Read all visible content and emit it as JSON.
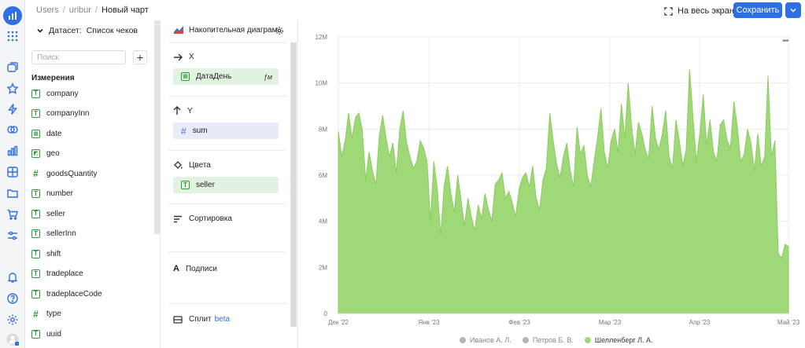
{
  "breadcrumb": {
    "items": [
      "Users",
      "uribur"
    ],
    "current": "Новый чарт"
  },
  "toolbar": {
    "fullscreen_label": "На весь экран",
    "save_label": "Сохранить"
  },
  "dataset": {
    "label": "Датасет:",
    "name": "Список чеков",
    "search_placeholder": "Поиск",
    "dimensions_title": "Измерения",
    "fields": [
      {
        "name": "company",
        "kind": "text"
      },
      {
        "name": "companyInn",
        "kind": "text"
      },
      {
        "name": "date",
        "kind": "date"
      },
      {
        "name": "geo",
        "kind": "geo"
      },
      {
        "name": "goodsQuantity",
        "kind": "number"
      },
      {
        "name": "number",
        "kind": "text"
      },
      {
        "name": "seller",
        "kind": "text"
      },
      {
        "name": "sellerInn",
        "kind": "text"
      },
      {
        "name": "shift",
        "kind": "text"
      },
      {
        "name": "tradeplace",
        "kind": "text"
      },
      {
        "name": "tradeplaceCode",
        "kind": "text"
      },
      {
        "name": "type",
        "kind": "number"
      },
      {
        "name": "uuid",
        "kind": "text"
      }
    ]
  },
  "sections": {
    "chart_type": "Накопительная диаграм...",
    "x_label": "X",
    "x_field": "ДатаДень",
    "x_field_extra": "ƒм",
    "y_label": "Y",
    "y_field": "sum",
    "colors_label": "Цвета",
    "colors_field": "seller",
    "sort_label": "Сортировка",
    "labels_label": "Подписи",
    "split_label": "Сплит",
    "split_badge": "beta"
  },
  "colors": {
    "accent": "#2f6fe6",
    "series": "#9fd876",
    "series_stroke": "#8dcc62",
    "field_icon": "#2e9a3c"
  },
  "chart_data": {
    "type": "area",
    "title": "",
    "xlabel": "",
    "ylabel": "",
    "ylim": [
      0,
      12000000
    ],
    "y_ticks": [
      "0",
      "2M",
      "4M",
      "6M",
      "8M",
      "10M",
      "12M"
    ],
    "x_ticks": [
      "Дек '22",
      "Янв '23",
      "Фев '23",
      "Мар '23",
      "Апр '23",
      "Май '23"
    ],
    "series": [
      {
        "name": "Иванов А. Л.",
        "values": [],
        "enabled": false,
        "color": "#b5b5b5"
      },
      {
        "name": "Петров Б. В.",
        "values": [],
        "enabled": false,
        "color": "#b5b5b5"
      },
      {
        "name": "Шелленберг Л. А.",
        "enabled": true,
        "color": "#9fd876",
        "values": [
          7.9,
          6.8,
          7.5,
          8.7,
          7.6,
          8.5,
          8.7,
          8.0,
          5.8,
          7.0,
          6.2,
          5.6,
          7.7,
          8.6,
          7.6,
          6.8,
          7.4,
          6.1,
          8.0,
          8.8,
          7.4,
          6.8,
          6.3,
          6.6,
          7.5,
          7.2,
          6.6,
          4.0,
          6.6,
          5.4,
          3.4,
          5.5,
          6.4,
          5.2,
          4.4,
          6.0,
          4.9,
          3.8,
          5.0,
          4.2,
          3.6,
          4.7,
          4.1,
          5.2,
          4.5,
          4.0,
          5.6,
          5.8,
          6.1,
          5.0,
          5.3,
          4.8,
          4.2,
          5.4,
          5.9,
          6.1,
          5.5,
          6.4,
          5.0,
          4.5,
          5.8,
          6.3,
          8.7,
          7.5,
          6.5,
          5.9,
          6.8,
          7.4,
          6.2,
          5.5,
          8.1,
          6.9,
          7.3,
          6.0,
          5.5,
          6.6,
          7.6,
          8.9,
          7.0,
          6.3,
          7.5,
          8.0,
          7.0,
          9.1,
          7.6,
          10.0,
          8.1,
          6.9,
          8.3,
          7.8,
          7.1,
          6.7,
          9.0,
          7.6,
          7.1,
          7.8,
          8.8,
          6.8,
          6.3,
          8.4,
          7.5,
          6.4,
          7.1,
          10.6,
          8.5,
          6.6,
          7.8,
          9.5,
          7.3,
          8.4,
          7.0,
          6.6,
          8.2,
          8.4,
          7.5,
          7.2,
          9.2,
          8.1,
          6.6,
          6.9,
          8.0,
          7.4,
          6.2,
          7.8,
          6.4,
          6.8,
          10.3,
          6.8,
          7.5,
          2.6,
          2.4,
          3.0,
          2.9
        ]
      }
    ],
    "legend": "bottom-center",
    "grid": true
  }
}
